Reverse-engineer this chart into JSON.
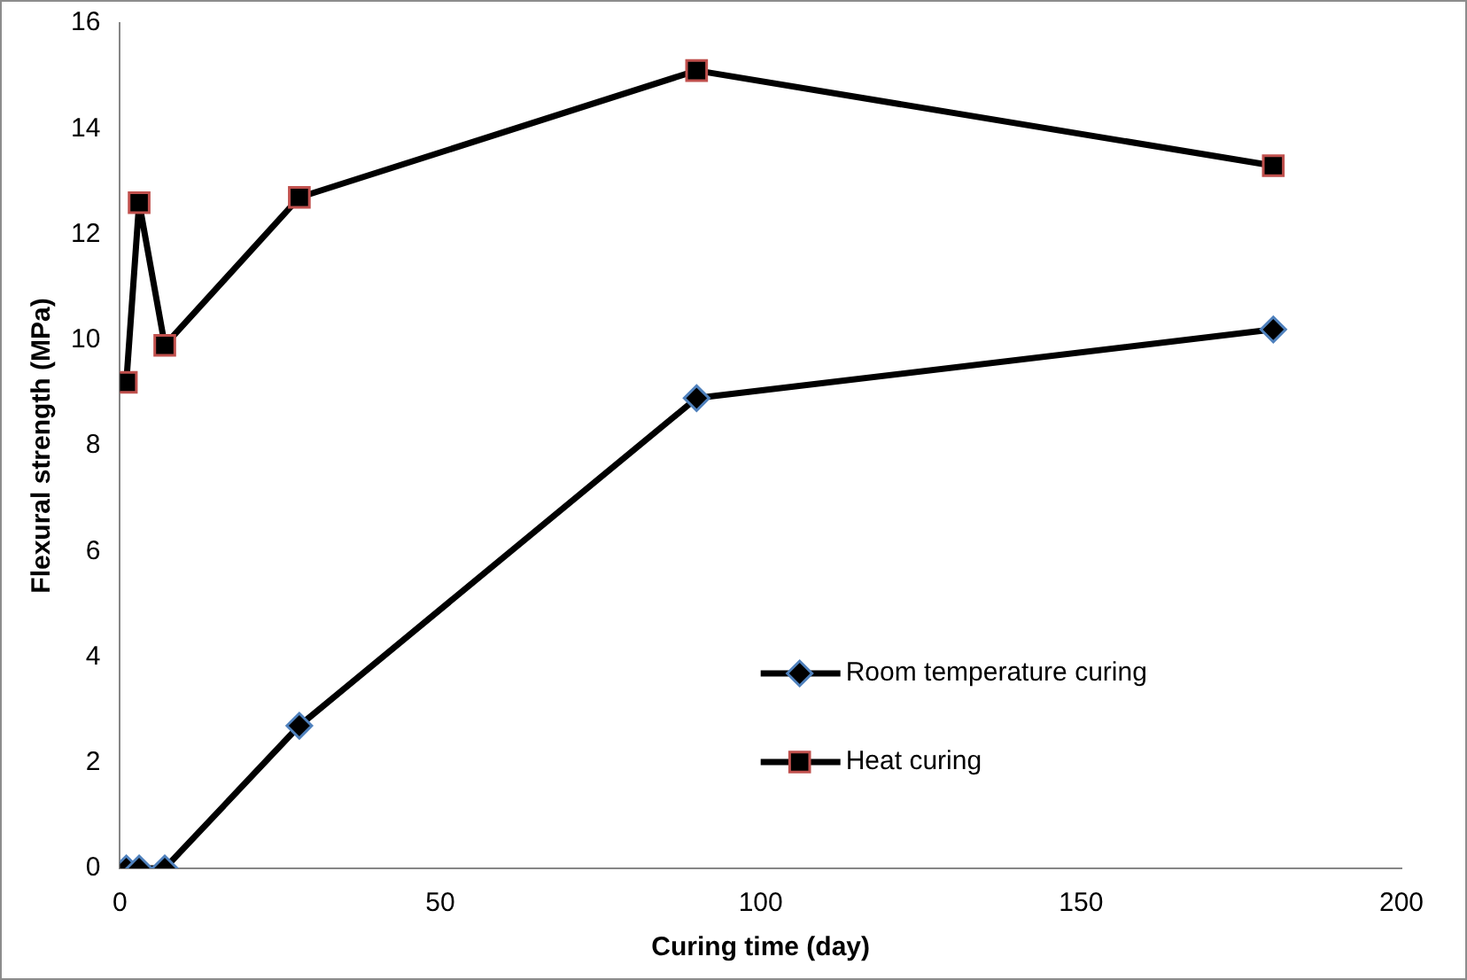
{
  "chart_data": {
    "type": "line",
    "xlabel": "Curing time (day)",
    "ylabel": "Flexural strength (MPa)",
    "x": [
      1,
      3,
      7,
      28,
      90,
      180
    ],
    "series": [
      {
        "name": "Room temperature curing",
        "color": "#000000",
        "marker": "diamond",
        "values": [
          0,
          0,
          0,
          2.7,
          8.9,
          10.2
        ]
      },
      {
        "name": "Heat curing",
        "color": "#000000",
        "marker": "square",
        "values": [
          9.2,
          12.6,
          9.9,
          12.7,
          15.1,
          13.3
        ]
      }
    ],
    "xlim": [
      0,
      200
    ],
    "xticks": [
      0,
      50,
      100,
      150,
      200
    ],
    "ylim": [
      0,
      16
    ],
    "yticks": [
      0,
      2,
      4,
      6,
      8,
      10,
      12,
      14,
      16
    ],
    "grid": false,
    "legend": "bottom right",
    "line_style": "solid"
  }
}
